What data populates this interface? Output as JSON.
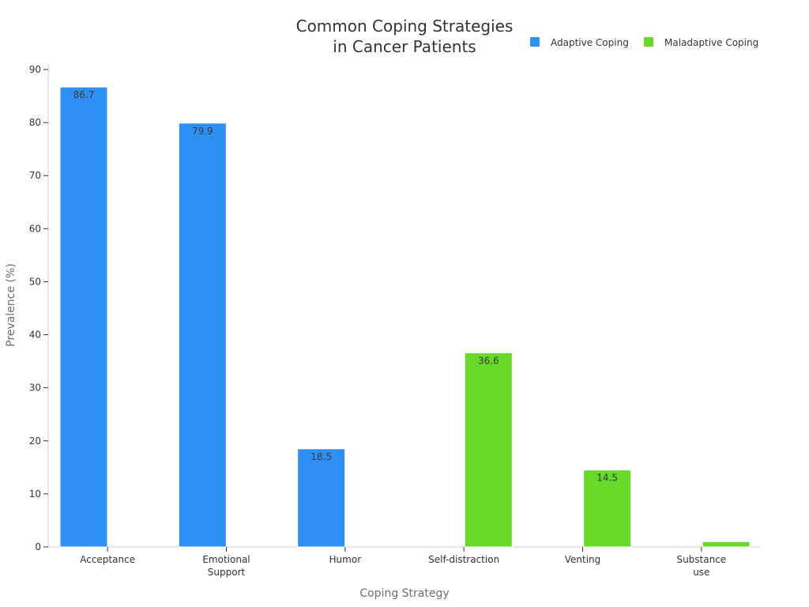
{
  "chart_data": {
    "type": "bar",
    "title": [
      "Common Coping Strategies",
      "in Cancer Patients"
    ],
    "xlabel": "Coping Strategy",
    "ylabel": "Prevalence (%)",
    "ylim": [
      0,
      90
    ],
    "yticks": [
      0,
      10,
      20,
      30,
      40,
      50,
      60,
      70,
      80,
      90
    ],
    "categories": [
      [
        "Acceptance"
      ],
      [
        "Emotional",
        "Support"
      ],
      [
        "Humor"
      ],
      [
        "Self-distraction"
      ],
      [
        "Venting"
      ],
      [
        "Substance",
        "use"
      ]
    ],
    "series": [
      {
        "name": "Adaptive Coping",
        "color": "#2e8ff5",
        "values": [
          86.7,
          79.9,
          18.5,
          null,
          null,
          null
        ]
      },
      {
        "name": "Maladaptive Coping",
        "color": "#67d928",
        "values": [
          null,
          null,
          null,
          36.6,
          14.5,
          1.0
        ]
      }
    ],
    "data_labels": [
      "86.7",
      "79.9",
      "18.5",
      "36.6",
      "14.5",
      ""
    ],
    "legend_position": "top-right",
    "grid": false
  }
}
